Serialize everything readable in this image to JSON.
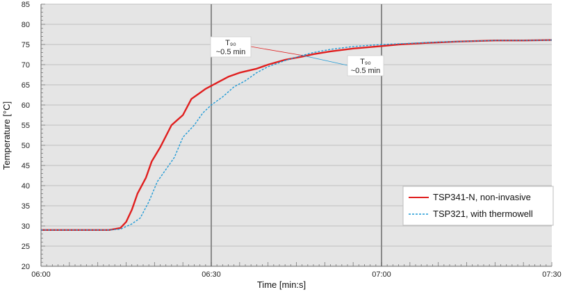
{
  "chart_data": {
    "type": "line",
    "xlabel": "Time [min:s]",
    "ylabel": "Temperature [°C]",
    "xlim": [
      0,
      90
    ],
    "ylim": [
      20,
      85
    ],
    "xticks": [
      {
        "x": 0,
        "label": "06:00"
      },
      {
        "x": 30,
        "label": "06:30"
      },
      {
        "x": 60,
        "label": "07:00"
      },
      {
        "x": 90,
        "label": "07:30"
      }
    ],
    "yticks": [
      20,
      25,
      30,
      35,
      40,
      45,
      50,
      55,
      60,
      65,
      70,
      75,
      80,
      85
    ],
    "vertical_markers": [
      30,
      60
    ],
    "legend_position": "bottom-right",
    "series": [
      {
        "name": "TSP341-N, non-invasive",
        "color": "#e01e1e",
        "style": "solid",
        "points": [
          [
            0,
            29
          ],
          [
            12,
            29
          ],
          [
            14,
            29.5
          ],
          [
            15,
            31
          ],
          [
            16,
            34
          ],
          [
            17,
            38
          ],
          [
            18.5,
            42
          ],
          [
            19.5,
            46
          ],
          [
            21,
            49.5
          ],
          [
            23,
            55
          ],
          [
            25,
            57.5
          ],
          [
            26.5,
            61.5
          ],
          [
            28,
            63
          ],
          [
            29,
            64
          ],
          [
            31,
            65.5
          ],
          [
            33,
            67
          ],
          [
            35,
            68
          ],
          [
            38,
            69
          ],
          [
            40,
            70
          ],
          [
            43,
            71.2
          ],
          [
            46,
            72
          ],
          [
            48,
            72.6
          ],
          [
            51,
            73.3
          ],
          [
            55,
            74
          ],
          [
            60,
            74.6
          ],
          [
            63,
            75
          ],
          [
            68,
            75.4
          ],
          [
            73,
            75.7
          ],
          [
            80,
            76
          ],
          [
            85,
            76
          ],
          [
            90,
            76.1
          ]
        ]
      },
      {
        "name": "TSP321, with thermowell",
        "color": "#1f9ad6",
        "style": "dashed",
        "points": [
          [
            0,
            29
          ],
          [
            12,
            29
          ],
          [
            14,
            29.2
          ],
          [
            16,
            30.5
          ],
          [
            17.5,
            32
          ],
          [
            19,
            36
          ],
          [
            20.5,
            41
          ],
          [
            22,
            44
          ],
          [
            23.5,
            47
          ],
          [
            25,
            52
          ],
          [
            27,
            55
          ],
          [
            28.5,
            58
          ],
          [
            30,
            60
          ],
          [
            32,
            62
          ],
          [
            34,
            64.5
          ],
          [
            36,
            66
          ],
          [
            38,
            68
          ],
          [
            40,
            69.5
          ],
          [
            43,
            71
          ],
          [
            46,
            72.3
          ],
          [
            48,
            73
          ],
          [
            51,
            73.8
          ],
          [
            55,
            74.5
          ],
          [
            60,
            75
          ],
          [
            65,
            75.3
          ],
          [
            70,
            75.6
          ],
          [
            75,
            75.8
          ],
          [
            80,
            76
          ],
          [
            85,
            76
          ],
          [
            90,
            76.1
          ]
        ]
      }
    ],
    "annotations": [
      {
        "line1": "T₉₀",
        "line2": "~0.5 min",
        "target_x": 46,
        "target_y": 72.3
      },
      {
        "line1": "T₉₀",
        "line2": "~0.5 min",
        "target_x": 46,
        "target_y": 72.3
      }
    ]
  }
}
